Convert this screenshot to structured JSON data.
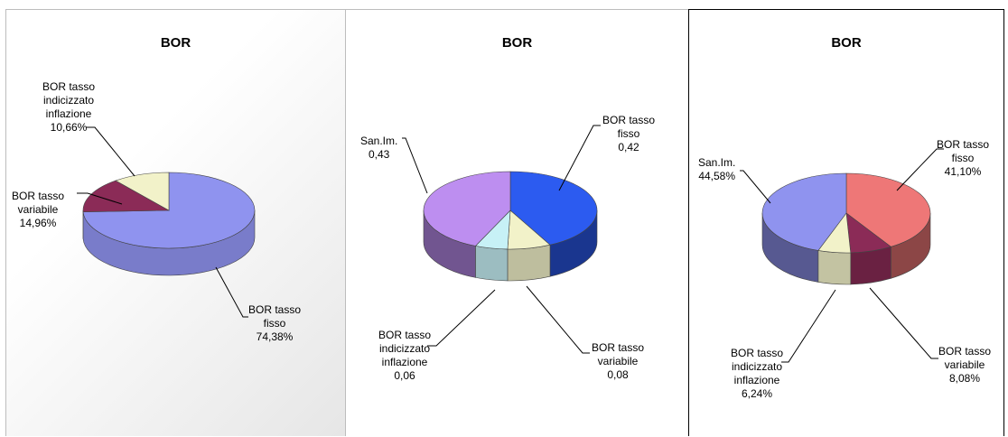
{
  "chart_data": [
    {
      "type": "pie",
      "title": "BOR",
      "slices": [
        {
          "label_lines": [
            "BOR tasso",
            "fisso"
          ],
          "value_text": "74,38%",
          "value": 74.38,
          "color": "#8f93ef"
        },
        {
          "label_lines": [
            "BOR tasso",
            "variabile"
          ],
          "value_text": "14,96%",
          "value": 14.96,
          "color": "#8b2b57"
        },
        {
          "label_lines": [
            "BOR tasso",
            "indicizzato",
            "inflazione"
          ],
          "value_text": "10,66%",
          "value": 10.66,
          "color": "#f2f2c9"
        }
      ]
    },
    {
      "type": "pie",
      "title": "BOR",
      "slices": [
        {
          "label_lines": [
            "BOR tasso",
            "fisso"
          ],
          "value_text": "0,42",
          "value": 0.42,
          "color": "#2c5bf0"
        },
        {
          "label_lines": [
            "BOR tasso",
            "variabile"
          ],
          "value_text": "0,08",
          "value": 0.08,
          "color": "#f2f2c9"
        },
        {
          "label_lines": [
            "BOR tasso",
            "indicizzato",
            "inflazione"
          ],
          "value_text": "0,06",
          "value": 0.06,
          "color": "#c7f1f6"
        },
        {
          "label_lines": [
            "San.Im."
          ],
          "value_text": "0,43",
          "value": 0.43,
          "color": "#bd8ef0"
        }
      ]
    },
    {
      "type": "pie",
      "title": "BOR",
      "slices": [
        {
          "label_lines": [
            "BOR tasso",
            "fisso"
          ],
          "value_text": "41,10%",
          "value": 41.1,
          "color": "#ee7777"
        },
        {
          "label_lines": [
            "BOR tasso",
            "variabile"
          ],
          "value_text": "8,08%",
          "value": 8.08,
          "color": "#8b2b57"
        },
        {
          "label_lines": [
            "BOR tasso",
            "indicizzato",
            "inflazione"
          ],
          "value_text": "6,24%",
          "value": 6.24,
          "color": "#f2f2c9"
        },
        {
          "label_lines": [
            "San.Im."
          ],
          "value_text": "44,58%",
          "value": 44.58,
          "color": "#8f93ef"
        }
      ]
    }
  ]
}
